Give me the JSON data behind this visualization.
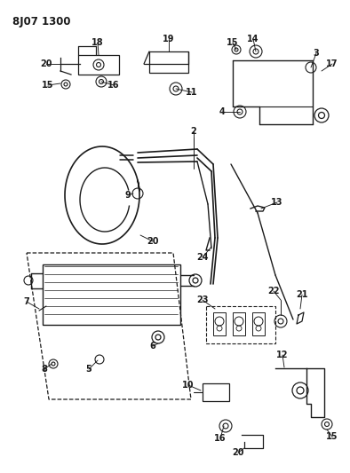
{
  "title": "8J07 1300",
  "bg_color": "#ffffff",
  "line_color": "#1a1a1a",
  "fig_w": 3.94,
  "fig_h": 5.33,
  "dpi": 100
}
